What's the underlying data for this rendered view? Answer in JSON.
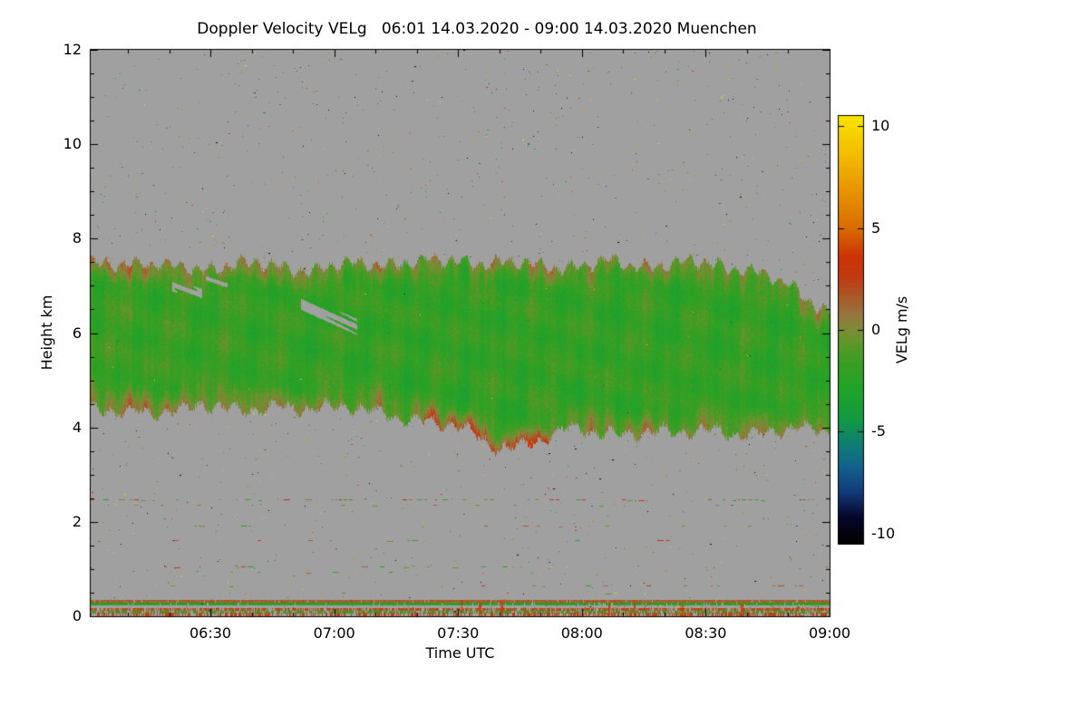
{
  "chart_data": {
    "type": "heatmap",
    "title": "Doppler Velocity VELg   06:01 14.03.2020 - 09:00 14.03.2020 Muenchen",
    "product": "Doppler Velocity VELg",
    "location": "Muenchen",
    "time_range": "06:01 14.03.2020 - 09:00 14.03.2020",
    "xlabel": "Time UTC",
    "ylabel": "Height km",
    "x_axis": {
      "start_minutes": 361,
      "end_minutes": 540,
      "minor_step_minutes": 10,
      "ticks": [
        {
          "minutes": 390,
          "label": "06:30"
        },
        {
          "minutes": 420,
          "label": "07:00"
        },
        {
          "minutes": 450,
          "label": "07:30"
        },
        {
          "minutes": 480,
          "label": "08:00"
        },
        {
          "minutes": 510,
          "label": "08:30"
        },
        {
          "minutes": 540,
          "label": "09:00"
        }
      ]
    },
    "y_axis": {
      "min_km": 0,
      "max_km": 12,
      "minor_step_km": 0.5,
      "ticks": [
        0,
        2,
        4,
        6,
        8,
        10,
        12
      ]
    },
    "colorbar": {
      "label": "VELg m/s",
      "min": -10.5,
      "max": 10.5,
      "ticks": [
        {
          "v": 10,
          "label": "10"
        },
        {
          "v": 5,
          "label": "5"
        },
        {
          "v": 0,
          "label": "0"
        },
        {
          "v": -5,
          "label": "-5"
        },
        {
          "v": -10,
          "label": "-10"
        }
      ],
      "stops": [
        {
          "v": -10.5,
          "c": "#000000"
        },
        {
          "v": -9.2,
          "c": "#06062e"
        },
        {
          "v": -8.0,
          "c": "#123a78"
        },
        {
          "v": -6.8,
          "c": "#11608c"
        },
        {
          "v": -5.6,
          "c": "#0f7f72"
        },
        {
          "v": -4.4,
          "c": "#129a42"
        },
        {
          "v": -3.0,
          "c": "#1fa32a"
        },
        {
          "v": -1.6,
          "c": "#3a9e22"
        },
        {
          "v": -0.6,
          "c": "#5f9629"
        },
        {
          "v": 0.0,
          "c": "#7f8b38"
        },
        {
          "v": 0.8,
          "c": "#977440"
        },
        {
          "v": 1.6,
          "c": "#a85a28"
        },
        {
          "v": 2.6,
          "c": "#c23a12"
        },
        {
          "v": 3.6,
          "c": "#cc3305"
        },
        {
          "v": 5.0,
          "c": "#d96c00"
        },
        {
          "v": 7.0,
          "c": "#e99800"
        },
        {
          "v": 9.0,
          "c": "#f4c400"
        },
        {
          "v": 10.5,
          "c": "#f9e400"
        }
      ]
    },
    "no_data_color": "#a0a0a0",
    "echo_band": {
      "description": "Cloud/precipitation echo layer between about 4 and 7.5 km; Doppler velocities mostly -3 to +1 m/s (green with olive/orange streaks, red fringe at cloud base near 07:30-07:50)",
      "fractions": [
        0,
        0.05,
        0.1,
        0.15,
        0.2,
        0.25,
        0.3,
        0.35,
        0.4,
        0.45,
        0.5,
        0.55,
        0.6,
        0.65,
        0.7,
        0.75,
        0.8,
        0.85,
        0.9,
        0.95,
        1
      ],
      "top_km": [
        7.45,
        7.52,
        7.42,
        7.38,
        7.48,
        7.42,
        7.35,
        7.45,
        7.5,
        7.52,
        7.55,
        7.5,
        7.45,
        7.42,
        7.5,
        7.45,
        7.5,
        7.45,
        7.35,
        6.95,
        6.45
      ],
      "bottom_km": [
        4.4,
        4.28,
        4.38,
        4.5,
        4.3,
        4.48,
        4.42,
        4.38,
        4.32,
        4.15,
        3.98,
        3.6,
        3.72,
        3.95,
        3.88,
        3.95,
        3.85,
        3.95,
        3.88,
        3.95,
        3.9
      ],
      "velocity": {
        "mean_ms": -2.0,
        "edge_bias_ms": 2.0,
        "streak_amp_ms": 1.2,
        "noise_ms": 0.8,
        "red_fringe": {
          "t0": 0.45,
          "t1": 0.62,
          "amp_ms": 2.4
        },
        "left_olive": {
          "until_t": 0.3,
          "amp_ms": 0.9
        }
      },
      "holes": [
        {
          "t0": 0.285,
          "t1": 0.36,
          "h_start": 6.6,
          "h_end": 6.15,
          "half_height": 0.14
        },
        {
          "t0": 0.11,
          "t1": 0.15,
          "h_start": 7.0,
          "h_end": 6.85,
          "half_height": 0.09
        },
        {
          "t0": 0.155,
          "t1": 0.185,
          "h_start": 7.15,
          "h_end": 7.05,
          "half_height": 0.06
        }
      ]
    },
    "speckle_bands": [
      {
        "h": 2.47,
        "density": 0.32,
        "t0": 0,
        "t1": 1
      },
      {
        "h": 2.36,
        "density": 0.1,
        "t0": 0.05,
        "t1": 1
      },
      {
        "h": 1.92,
        "density": 0.05,
        "t0": 0.1,
        "t1": 0.95
      },
      {
        "h": 1.62,
        "density": 0.08,
        "t0": 0,
        "t1": 0.8
      },
      {
        "h": 1.05,
        "density": 0.16,
        "t0": 0,
        "t1": 0.6
      },
      {
        "h": 0.95,
        "density": 0.07,
        "t0": 0.1,
        "t1": 0.55
      },
      {
        "h": 0.65,
        "density": 0.1,
        "t0": 0.05,
        "t1": 1
      },
      {
        "h": 0.5,
        "density": 0.05,
        "t0": 0.3,
        "t1": 0.9
      }
    ],
    "surface_layers": [
      {
        "h": 0.33,
        "thick": 0.05,
        "v": 1.5,
        "coverage": 0.97
      },
      {
        "h": 0.27,
        "thick": 0.04,
        "v": -2.6,
        "coverage": 0.92
      },
      {
        "h": 0.15,
        "thick": 0.03,
        "v": 2.0,
        "coverage": 0.72
      },
      {
        "h": 0.1,
        "thick": 0.03,
        "v": -2.2,
        "coverage": 0.65
      },
      {
        "h": 0.05,
        "thick": 0.05,
        "v": 2.6,
        "coverage": 0.5
      }
    ],
    "surface_speckle": {
      "h_max": 0.3,
      "base_density": 0.06,
      "right_density": 0.3,
      "v_mean": 2.3,
      "v_spread": 1.8
    },
    "surface_spikes": [
      {
        "t": 0.5,
        "h": 0.34
      },
      {
        "t": 0.525,
        "h": 0.28
      },
      {
        "t": 0.555,
        "h": 0.3
      },
      {
        "t": 0.7,
        "h": 0.26
      },
      {
        "t": 0.735,
        "h": 0.3
      },
      {
        "t": 0.8,
        "h": 0.24
      },
      {
        "t": 0.88,
        "h": 0.26
      }
    ],
    "background_speckles": {
      "count": 1600,
      "value_range": [
        -10.5,
        10.5
      ]
    }
  }
}
